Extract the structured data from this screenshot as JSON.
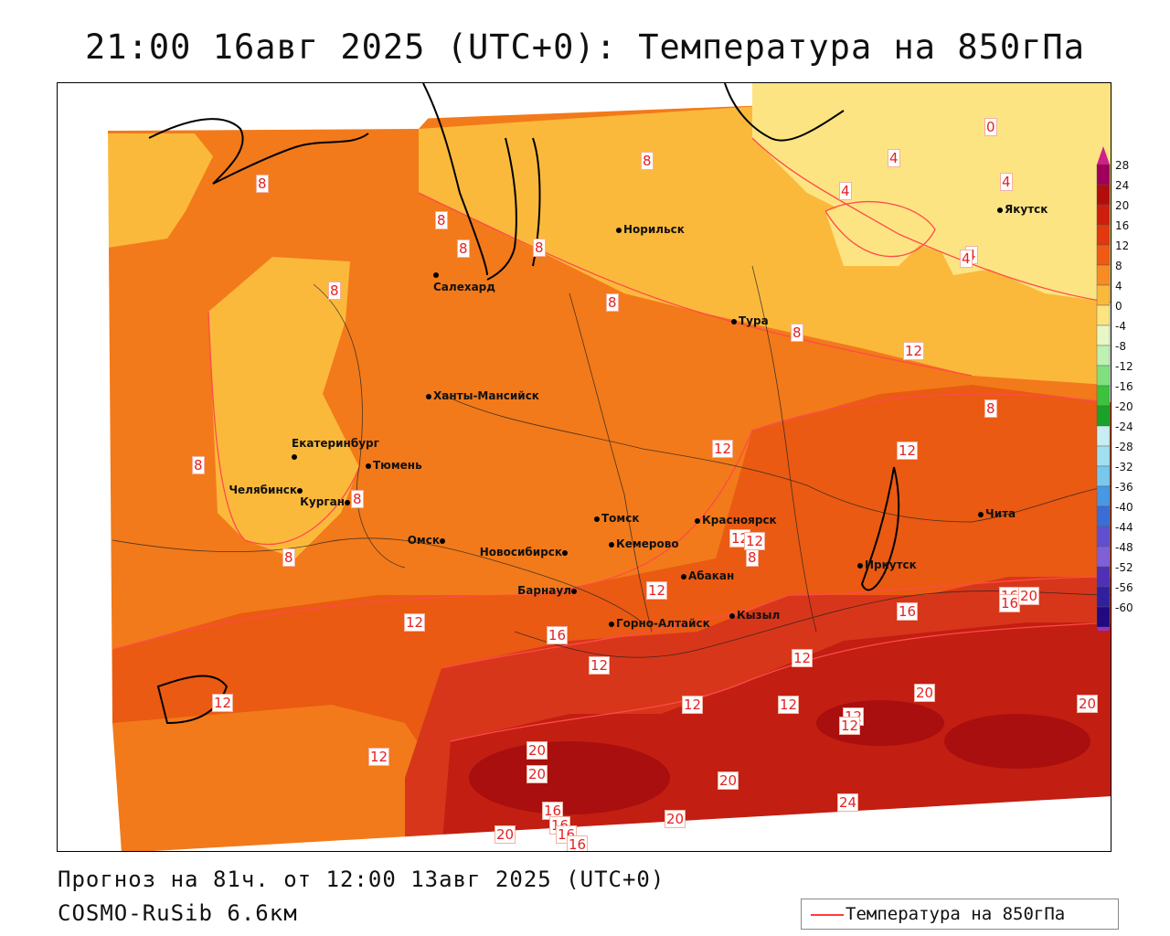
{
  "title": "21:00 16авг 2025 (UTC+0): Температура на 850гПа",
  "footer": {
    "forecast": "Прогноз на 81ч. от 12:00 13авг 2025 (UTC+0)",
    "model": "COSMO-RuSib 6.6км",
    "legend_label": "Температура на 850гПа"
  },
  "cities": [
    {
      "name": "Норильск",
      "side": "right"
    },
    {
      "name": "Якутск",
      "side": "right"
    },
    {
      "name": "Салехард",
      "side": "below"
    },
    {
      "name": "Тура",
      "side": "right"
    },
    {
      "name": "Ханты-Мансийск",
      "side": "right"
    },
    {
      "name": "Екатеринбург",
      "side": "above"
    },
    {
      "name": "Тюмень",
      "side": "right"
    },
    {
      "name": "Челябинск",
      "side": "left"
    },
    {
      "name": "Курган",
      "side": "left"
    },
    {
      "name": "Омск",
      "side": "left"
    },
    {
      "name": "Новосибирск",
      "side": "left"
    },
    {
      "name": "Томск",
      "side": "right"
    },
    {
      "name": "Кемерово",
      "side": "right"
    },
    {
      "name": "Красноярск",
      "side": "right"
    },
    {
      "name": "Абакан",
      "side": "right"
    },
    {
      "name": "Барнаул",
      "side": "left"
    },
    {
      "name": "Горно-Алтайск",
      "side": "right"
    },
    {
      "name": "Кызыл",
      "side": "right"
    },
    {
      "name": "Иркутск",
      "side": "right"
    },
    {
      "name": "Чита",
      "side": "right"
    }
  ],
  "contour_labels": [
    "0",
    "4",
    "4",
    "4",
    "4",
    "4",
    "8",
    "8",
    "8",
    "8",
    "8",
    "8",
    "8",
    "8",
    "8",
    "8",
    "8",
    "8",
    "8",
    "12",
    "12",
    "12",
    "12",
    "12",
    "12",
    "12",
    "12",
    "12",
    "12",
    "12",
    "12",
    "12",
    "12",
    "12",
    "16",
    "16",
    "16",
    "16",
    "16",
    "16",
    "16",
    "16",
    "20",
    "20",
    "20",
    "20",
    "20",
    "20",
    "20",
    "20",
    "24"
  ],
  "colorbar": {
    "ticks": [
      "28",
      "24",
      "20",
      "16",
      "12",
      "8",
      "4",
      "0",
      "-4",
      "-8",
      "-12",
      "-16",
      "-20",
      "-24",
      "-28",
      "-32",
      "-36",
      "-40",
      "-44",
      "-48",
      "-52",
      "-56",
      "-60"
    ],
    "colors": [
      "#a0005a",
      "#b30c0c",
      "#cf1e0e",
      "#e2380e",
      "#ef5a14",
      "#f88b24",
      "#fbb93c",
      "#fde482",
      "#e8f7c8",
      "#bff0b4",
      "#80e07e",
      "#3cc23c",
      "#1aa228",
      "#c8eef2",
      "#a0e0f0",
      "#78c8ee",
      "#4898e4",
      "#3a6ed6",
      "#6050d0",
      "#8060d8",
      "#5030b8",
      "#3020a0",
      "#200a80"
    ],
    "top_arrow_color": "#d0208a",
    "bottom_arrow_color": "#9a30c0"
  },
  "map_colors": {
    "t0_4": "#fde482",
    "t4_8": "#fbb93c",
    "t8_12": "#f27a1a",
    "t12_16": "#ea5a12",
    "t16_20": "#d8361a",
    "t20_24": "#c21e12",
    "t24_28": "#a80f0e",
    "contour": "#ff4a4a"
  }
}
